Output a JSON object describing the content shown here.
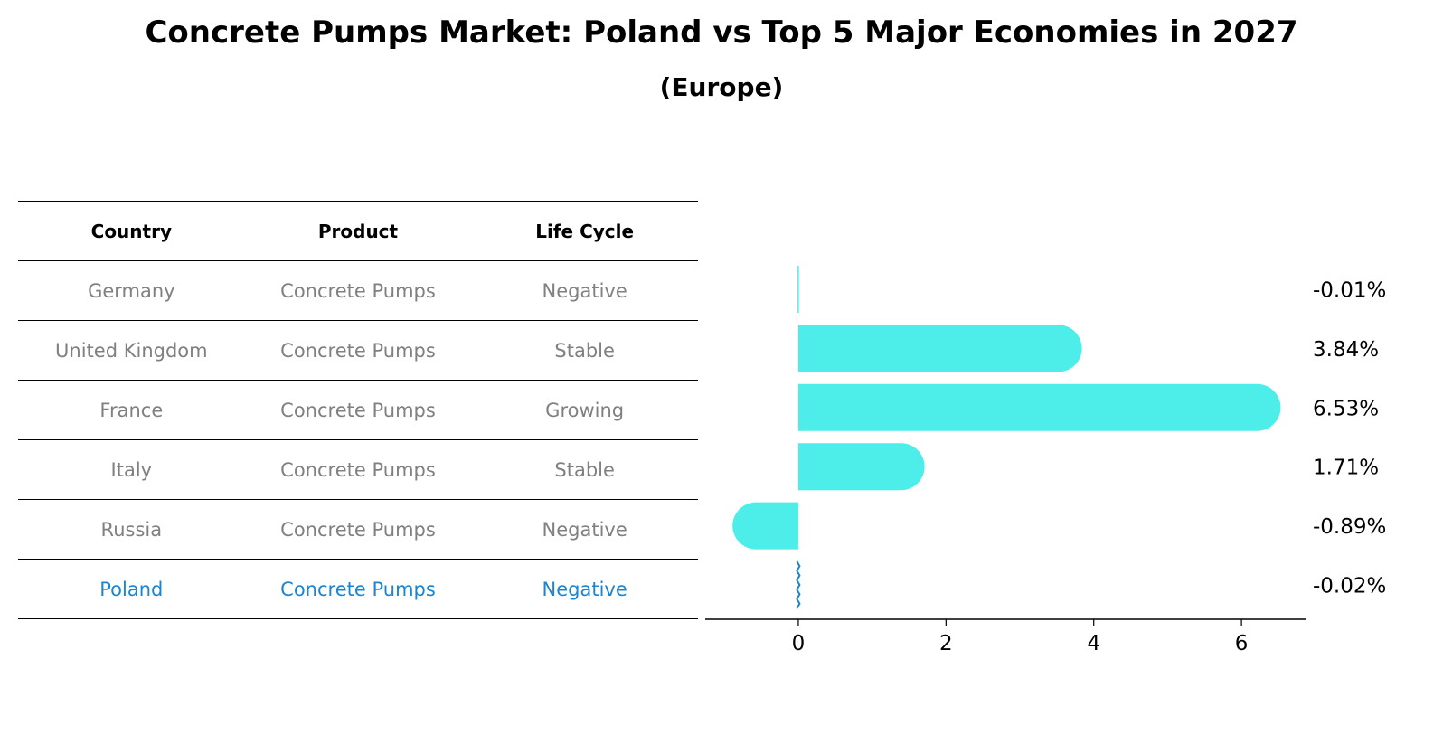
{
  "title": "Concrete Pumps Market: Poland vs Top 5 Major Economies in 2027",
  "subtitle": "(Europe)",
  "table": {
    "headers": [
      "Country",
      "Product",
      "Life Cycle"
    ],
    "rows": [
      [
        "Germany",
        "Concrete Pumps",
        "Negative"
      ],
      [
        "United Kingdom",
        "Concrete Pumps",
        "Stable"
      ],
      [
        "France",
        "Concrete Pumps",
        "Growing"
      ],
      [
        "Italy",
        "Concrete Pumps",
        "Stable"
      ],
      [
        "Russia",
        "Concrete Pumps",
        "Negative"
      ],
      [
        "Poland",
        "Concrete Pumps",
        "Negative"
      ]
    ],
    "highlight_row": 5
  },
  "colors": {
    "bar": "#4deeea",
    "highlight": "#1a85d0",
    "muted_text": "#808080"
  },
  "chart_data": {
    "type": "bar",
    "orientation": "horizontal",
    "categories": [
      "Germany",
      "United Kingdom",
      "France",
      "Italy",
      "Russia",
      "Poland"
    ],
    "values": [
      -0.01,
      3.84,
      6.53,
      1.71,
      -0.89,
      -0.02
    ],
    "value_labels": [
      "-0.01%",
      "3.84%",
      "6.53%",
      "1.71%",
      "-0.89%",
      "-0.02%"
    ],
    "xticks": [
      0,
      2,
      4,
      6
    ],
    "xlim": [
      -1.26,
      6.88
    ],
    "grid": false
  }
}
